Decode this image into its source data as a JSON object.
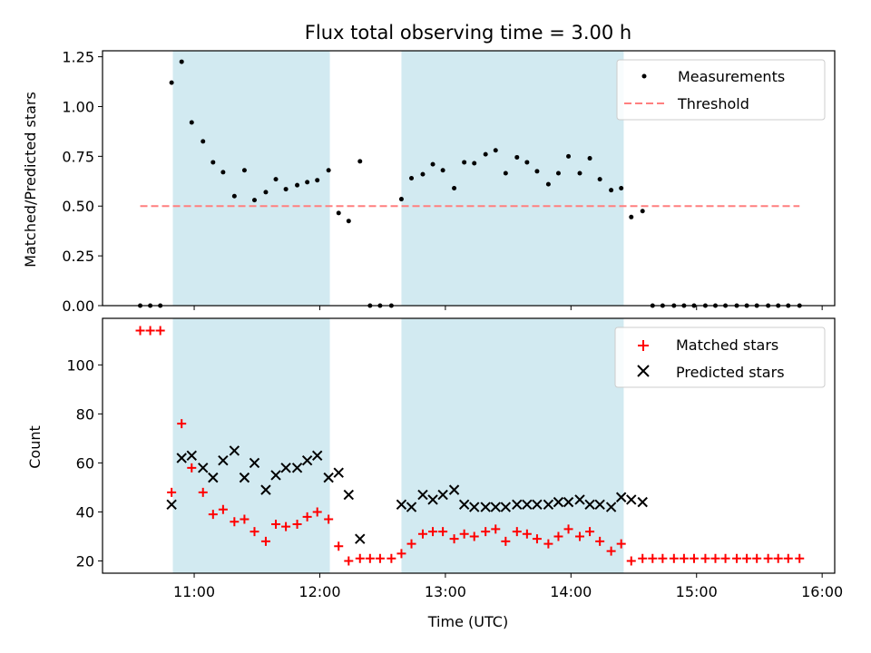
{
  "chart_data": [
    {
      "type": "scatter",
      "title": "Flux total observing time = 3.00 h",
      "xlabel": "",
      "ylabel": "Matched/Predicted stars",
      "ylim": [
        0,
        1.28
      ],
      "yticks": [
        "0.00",
        "0.25",
        "0.50",
        "0.75",
        "1.00",
        "1.25"
      ],
      "ytick_values": [
        0,
        0.25,
        0.5,
        0.75,
        1.0,
        1.25
      ],
      "xlim_hours": [
        10.27,
        16.1
      ],
      "xtick_hours": [
        11,
        12,
        13,
        14,
        15,
        16
      ],
      "shaded_intervals_hours": [
        [
          10.83,
          12.08
        ],
        [
          12.65,
          14.42
        ]
      ],
      "shade_color": "#add8e6",
      "legend_position": "top-right",
      "series": [
        {
          "name": "Measurements",
          "marker": "dot",
          "color": "#000000",
          "x_hours": [
            10.57,
            10.65,
            10.73,
            10.82,
            10.9,
            10.98,
            11.07,
            11.15,
            11.23,
            11.32,
            11.4,
            11.48,
            11.57,
            11.65,
            11.73,
            11.82,
            11.9,
            11.98,
            12.07,
            12.15,
            12.23,
            12.32,
            12.4,
            12.48,
            12.57,
            12.65,
            12.73,
            12.82,
            12.9,
            12.98,
            13.07,
            13.15,
            13.23,
            13.32,
            13.4,
            13.48,
            13.57,
            13.65,
            13.73,
            13.82,
            13.9,
            13.98,
            14.07,
            14.15,
            14.23,
            14.32,
            14.4,
            14.48,
            14.57,
            14.65,
            14.73,
            14.82,
            14.9,
            14.98,
            15.07,
            15.15,
            15.23,
            15.32,
            15.4,
            15.48,
            15.57,
            15.65,
            15.73,
            15.82
          ],
          "y": [
            0,
            0,
            0,
            1.12,
            1.225,
            0.92,
            0.825,
            0.72,
            0.67,
            0.55,
            0.68,
            0.53,
            0.57,
            0.635,
            0.585,
            0.605,
            0.62,
            0.63,
            0.68,
            0.465,
            0.425,
            0.725,
            0,
            0,
            0,
            0.535,
            0.64,
            0.66,
            0.71,
            0.68,
            0.59,
            0.72,
            0.715,
            0.76,
            0.78,
            0.665,
            0.745,
            0.72,
            0.675,
            0.61,
            0.665,
            0.75,
            0.665,
            0.74,
            0.635,
            0.58,
            0.59,
            0.445,
            0.475,
            0,
            0,
            0,
            0,
            0,
            0,
            0,
            0,
            0,
            0,
            0,
            0,
            0,
            0,
            0
          ]
        },
        {
          "name": "Threshold",
          "marker": "dashed-line",
          "color": "#ff7f7f",
          "x_hours": [
            10.57,
            15.82
          ],
          "y": [
            0.5,
            0.5
          ]
        }
      ]
    },
    {
      "type": "scatter",
      "title": "",
      "xlabel": "Time (UTC)",
      "ylabel": "Count",
      "ylim": [
        15,
        119
      ],
      "yticks": [
        "20",
        "40",
        "60",
        "80",
        "100"
      ],
      "ytick_values": [
        20,
        40,
        60,
        80,
        100
      ],
      "xlim_hours": [
        10.27,
        16.1
      ],
      "xtick_hours": [
        11,
        12,
        13,
        14,
        15,
        16
      ],
      "xticks": [
        "11:00",
        "12:00",
        "13:00",
        "14:00",
        "15:00",
        "16:00"
      ],
      "shaded_intervals_hours": [
        [
          10.83,
          12.08
        ],
        [
          12.65,
          14.42
        ]
      ],
      "shade_color": "#add8e6",
      "legend_position": "top-right",
      "series": [
        {
          "name": "Matched stars",
          "marker": "plus",
          "color": "#ff0000",
          "x_hours": [
            10.57,
            10.65,
            10.73,
            10.82,
            10.9,
            10.98,
            11.07,
            11.15,
            11.23,
            11.32,
            11.4,
            11.48,
            11.57,
            11.65,
            11.73,
            11.82,
            11.9,
            11.98,
            12.07,
            12.15,
            12.23,
            12.32,
            12.4,
            12.48,
            12.57,
            12.65,
            12.73,
            12.82,
            12.9,
            12.98,
            13.07,
            13.15,
            13.23,
            13.32,
            13.4,
            13.48,
            13.57,
            13.65,
            13.73,
            13.82,
            13.9,
            13.98,
            14.07,
            14.15,
            14.23,
            14.32,
            14.4,
            14.48,
            14.57,
            14.65,
            14.73,
            14.82,
            14.9,
            14.98,
            15.07,
            15.15,
            15.23,
            15.32,
            15.4,
            15.48,
            15.57,
            15.65,
            15.73,
            15.82
          ],
          "y": [
            114,
            114,
            114,
            48,
            76,
            58,
            48,
            39,
            41,
            36,
            37,
            32,
            28,
            35,
            34,
            35,
            38,
            40,
            37,
            26,
            20,
            21,
            21,
            21,
            21,
            23,
            27,
            31,
            32,
            32,
            29,
            31,
            30,
            32,
            33,
            28,
            32,
            31,
            29,
            27,
            30,
            33,
            30,
            32,
            28,
            24,
            27,
            20,
            21,
            21,
            21,
            21,
            21,
            21,
            21,
            21,
            21,
            21,
            21,
            21,
            21,
            21,
            21,
            21
          ]
        },
        {
          "name": "Predicted stars",
          "marker": "x",
          "color": "#000000",
          "x_hours": [
            10.82,
            10.9,
            10.98,
            11.07,
            11.15,
            11.23,
            11.32,
            11.4,
            11.48,
            11.57,
            11.65,
            11.73,
            11.82,
            11.9,
            11.98,
            12.07,
            12.15,
            12.23,
            12.32,
            12.65,
            12.73,
            12.82,
            12.9,
            12.98,
            13.07,
            13.15,
            13.23,
            13.32,
            13.4,
            13.48,
            13.57,
            13.65,
            13.73,
            13.82,
            13.9,
            13.98,
            14.07,
            14.15,
            14.23,
            14.32,
            14.4,
            14.48,
            14.57
          ],
          "y": [
            43,
            62,
            63,
            58,
            54,
            61,
            65,
            54,
            60,
            49,
            55,
            58,
            58,
            61,
            63,
            54,
            56,
            47,
            29,
            43,
            42,
            47,
            45,
            47,
            49,
            43,
            42,
            42,
            42,
            42,
            43,
            43,
            43,
            43,
            44,
            44,
            45,
            43,
            43,
            42,
            46,
            45,
            44
          ]
        }
      ]
    }
  ],
  "time_format": "HH:00",
  "colors": {
    "shade": "#add8e6",
    "threshold": "#ff7f7f",
    "matched": "#ff0000",
    "predicted": "#000000"
  }
}
